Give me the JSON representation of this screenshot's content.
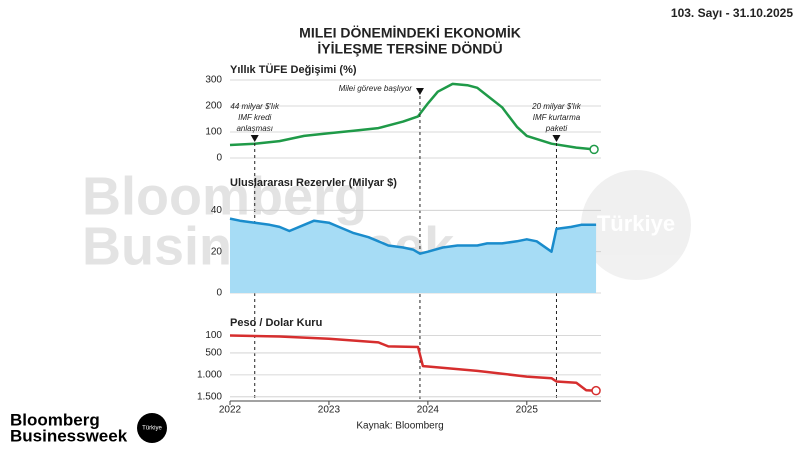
{
  "issue": "103. Sayı - 31.10.2025",
  "title_lines": [
    "MILEI DÖNEMİNDEKİ EKONOMİK",
    "İYİLEŞME TERSİNE DÖNDÜ"
  ],
  "source": "Kaynak: Bloomberg",
  "logo": {
    "lines": [
      "Bloomberg",
      "Businessweek"
    ],
    "badge": "Türkiye"
  },
  "watermark": {
    "lines": [
      "Bloomberg",
      "Businessweek"
    ],
    "badge": "Türkiye"
  },
  "chart_data": [
    {
      "type": "line",
      "title": "Yıllık TÜFE Değişimi (%)",
      "xlim": [
        2022,
        2025.75
      ],
      "ylim": [
        0,
        300
      ],
      "yticks": [
        0,
        100,
        200,
        300
      ],
      "grid": true,
      "series": [
        {
          "color": "#1f9a48",
          "x": [
            2022.0,
            2022.25,
            2022.5,
            2022.75,
            2023.0,
            2023.25,
            2023.5,
            2023.75,
            2023.9,
            2024.0,
            2024.1,
            2024.25,
            2024.4,
            2024.5,
            2024.6,
            2024.75,
            2024.9,
            2025.0,
            2025.25,
            2025.5,
            2025.68
          ],
          "values": [
            50,
            55,
            65,
            85,
            95,
            105,
            115,
            140,
            160,
            210,
            255,
            285,
            280,
            270,
            240,
            195,
            120,
            85,
            55,
            40,
            33
          ]
        }
      ],
      "annotations": [
        {
          "x": 2022.25,
          "lines": [
            "44 milyar $'lık",
            "IMF kredi",
            "anlaşması"
          ]
        },
        {
          "x": 2023.92,
          "lines": [
            "Milei göreve başlıyor"
          ]
        },
        {
          "x": 2025.3,
          "lines": [
            "20 milyar $'lık",
            "IMF kurtarma",
            "paketi"
          ]
        }
      ]
    },
    {
      "type": "area",
      "title": "Uluslararası Rezervler (Milyar $)",
      "xlim": [
        2022,
        2025.75
      ],
      "ylim": [
        0,
        45
      ],
      "yticks": [
        0,
        20,
        40
      ],
      "grid": true,
      "series": [
        {
          "color": "#1a8ccc",
          "fill": "#a6dcf5",
          "x": [
            2022.0,
            2022.1,
            2022.25,
            2022.4,
            2022.5,
            2022.6,
            2022.75,
            2022.85,
            2023.0,
            2023.1,
            2023.25,
            2023.4,
            2023.5,
            2023.6,
            2023.75,
            2023.85,
            2023.92,
            2024.0,
            2024.15,
            2024.3,
            2024.5,
            2024.6,
            2024.75,
            2024.9,
            2025.0,
            2025.1,
            2025.25,
            2025.3,
            2025.45,
            2025.55,
            2025.7
          ],
          "values": [
            36,
            35,
            34,
            33,
            32,
            30,
            33,
            35,
            34,
            32,
            29,
            27,
            25,
            23,
            22,
            21,
            19,
            20,
            22,
            23,
            23,
            24,
            24,
            25,
            26,
            25,
            20,
            31,
            32,
            33,
            33
          ]
        }
      ]
    },
    {
      "type": "line",
      "title": "Peso / Dolar Kuru",
      "xlim": [
        2022,
        2025.75
      ],
      "ylim": [
        0,
        1550
      ],
      "inverted": true,
      "yticks": [
        100,
        500,
        {
          "value": 1000,
          "label": "1.000"
        },
        {
          "value": 1500,
          "label": "1.500"
        }
      ],
      "grid": true,
      "xticks": [
        2022,
        2023,
        2024,
        2025
      ],
      "series": [
        {
          "color": "#d62e2e",
          "x": [
            2022.0,
            2022.5,
            2023.0,
            2023.5,
            2023.6,
            2023.9,
            2023.95,
            2024.0,
            2024.5,
            2025.0,
            2025.25,
            2025.3,
            2025.5,
            2025.6,
            2025.7
          ],
          "values": [
            102,
            125,
            177,
            260,
            350,
            365,
            800,
            810,
            910,
            1040,
            1075,
            1150,
            1180,
            1350,
            1360
          ]
        }
      ]
    }
  ]
}
